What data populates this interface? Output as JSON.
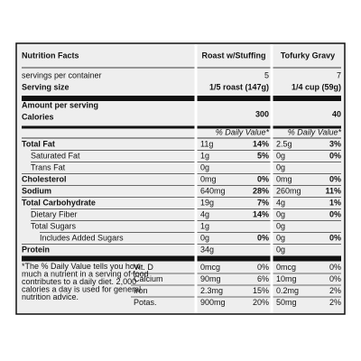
{
  "header": {
    "title": "Nutrition Facts",
    "columns": [
      "Roast w/Stuffing",
      "Tofurky Gravy"
    ]
  },
  "servings": {
    "label": "servings per container",
    "values": [
      "5",
      "7"
    ]
  },
  "serving_size": {
    "label": "Serving size",
    "values": [
      "1/5 roast (147g)",
      "1/4 cup (59g)"
    ]
  },
  "calories": {
    "caption": "Amount per serving",
    "label": "Calories",
    "values": [
      "300",
      "40"
    ]
  },
  "daily_value_label": [
    "% Daily Value*",
    "% Daily Value*"
  ],
  "nutrients": [
    {
      "name": "Total Fat",
      "bold": true,
      "indent": 0,
      "values": [
        {
          "amount": "11g",
          "dv": "14%"
        },
        {
          "amount": "2.5g",
          "dv": "3%"
        }
      ]
    },
    {
      "name": "Saturated Fat",
      "bold": false,
      "indent": 1,
      "values": [
        {
          "amount": "1g",
          "dv": "5%"
        },
        {
          "amount": "0g",
          "dv": "0%"
        }
      ]
    },
    {
      "name": "Trans Fat",
      "bold": false,
      "indent": 1,
      "values": [
        {
          "amount": "0g"
        },
        {
          "amount": "0g"
        }
      ]
    },
    {
      "name": "Cholesterol",
      "bold": true,
      "indent": 0,
      "values": [
        {
          "amount": "0mg",
          "dv": "0%"
        },
        {
          "amount": "0mg",
          "dv": "0%"
        }
      ]
    },
    {
      "name": "Sodium",
      "bold": true,
      "indent": 0,
      "values": [
        {
          "amount": "640mg",
          "dv": "28%"
        },
        {
          "amount": "260mg",
          "dv": "11%"
        }
      ]
    },
    {
      "name": "Total Carbohydrate",
      "bold": true,
      "indent": 0,
      "values": [
        {
          "amount": "19g",
          "dv": "7%"
        },
        {
          "amount": "4g",
          "dv": "1%"
        }
      ]
    },
    {
      "name": "Dietary Fiber",
      "bold": false,
      "indent": 1,
      "values": [
        {
          "amount": "4g",
          "dv": "14%"
        },
        {
          "amount": "0g",
          "dv": "0%"
        }
      ]
    },
    {
      "name": "Total Sugars",
      "bold": false,
      "indent": 1,
      "values": [
        {
          "amount": "1g"
        },
        {
          "amount": "0g"
        }
      ]
    },
    {
      "name": "Includes Added Sugars",
      "bold": false,
      "indent": 2,
      "values": [
        {
          "amount": "0g",
          "dv": "0%"
        },
        {
          "amount": "0g",
          "dv": "0%"
        }
      ]
    },
    {
      "name": "Protein",
      "bold": true,
      "indent": 0,
      "values": [
        {
          "amount": "34g"
        },
        {
          "amount": "0g"
        }
      ]
    }
  ],
  "vitamins": [
    {
      "name": "Vit. D",
      "values": [
        {
          "amount": "0mcg",
          "dv": "0%"
        },
        {
          "amount": "0mcg",
          "dv": "0%"
        }
      ]
    },
    {
      "name": "Calcium",
      "values": [
        {
          "amount": "90mg",
          "dv": "6%"
        },
        {
          "amount": "10mg",
          "dv": "0%"
        }
      ]
    },
    {
      "name": "Iron",
      "values": [
        {
          "amount": "2.3mg",
          "dv": "15%"
        },
        {
          "amount": "0.2mg",
          "dv": "2%"
        }
      ]
    },
    {
      "name": "Potas.",
      "values": [
        {
          "amount": "900mg",
          "dv": "20%"
        },
        {
          "amount": "50mg",
          "dv": "2%"
        }
      ]
    }
  ],
  "footnote": [
    "*The % Daily Value tells you how",
    "much a nutrient in a serving of food",
    "contributes to a daily diet. 2,000",
    "calories a day is used for general",
    "nutrition advice."
  ]
}
